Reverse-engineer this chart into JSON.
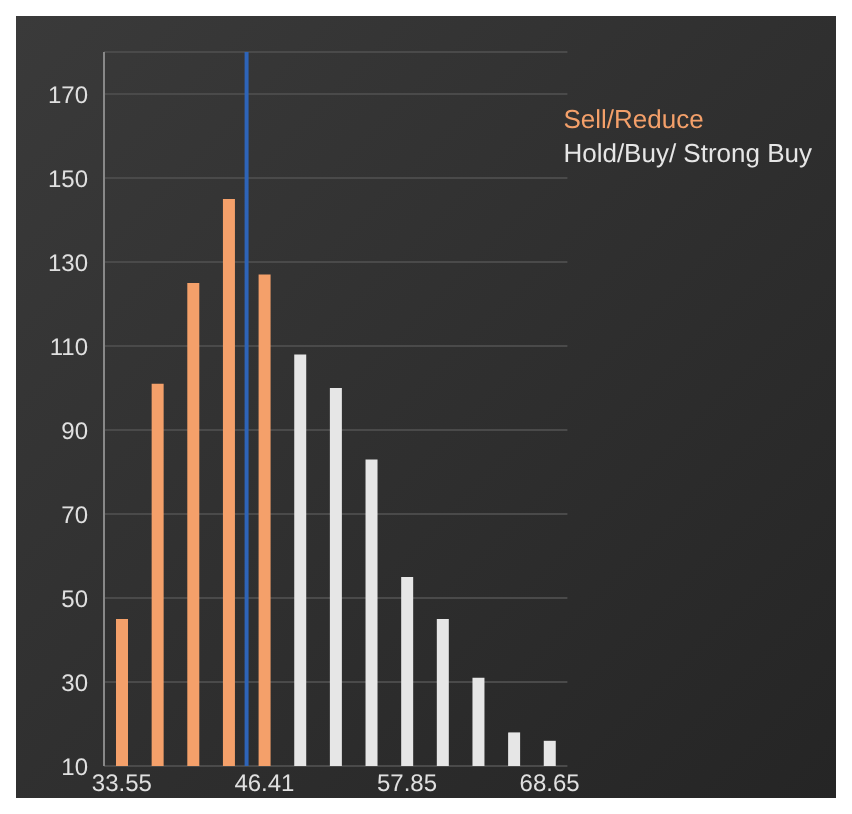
{
  "chart_data": {
    "type": "bar",
    "categories": [
      "33.55",
      null,
      null,
      null,
      "46.41",
      null,
      null,
      null,
      "57.85",
      null,
      null,
      null,
      "68.65"
    ],
    "series": [
      {
        "name": "Sell/Reduce",
        "color": "#f4a06a",
        "values": [
          45,
          101,
          125,
          145,
          127,
          null,
          null,
          null,
          null,
          null,
          null,
          null,
          null
        ]
      },
      {
        "name": "Hold/Buy/ Strong Buy",
        "color": "#e6e6e6",
        "values": [
          null,
          null,
          null,
          null,
          null,
          108,
          100,
          83,
          55,
          45,
          31,
          18,
          16
        ]
      }
    ],
    "ylim": [
      10,
      180
    ],
    "yticks": [
      10,
      30,
      50,
      70,
      90,
      110,
      130,
      150,
      170
    ],
    "grid": "y",
    "legend": "top right",
    "ref_lines": [
      {
        "axis": "x",
        "value": "46.41",
        "color": "#2e64b8"
      }
    ]
  }
}
